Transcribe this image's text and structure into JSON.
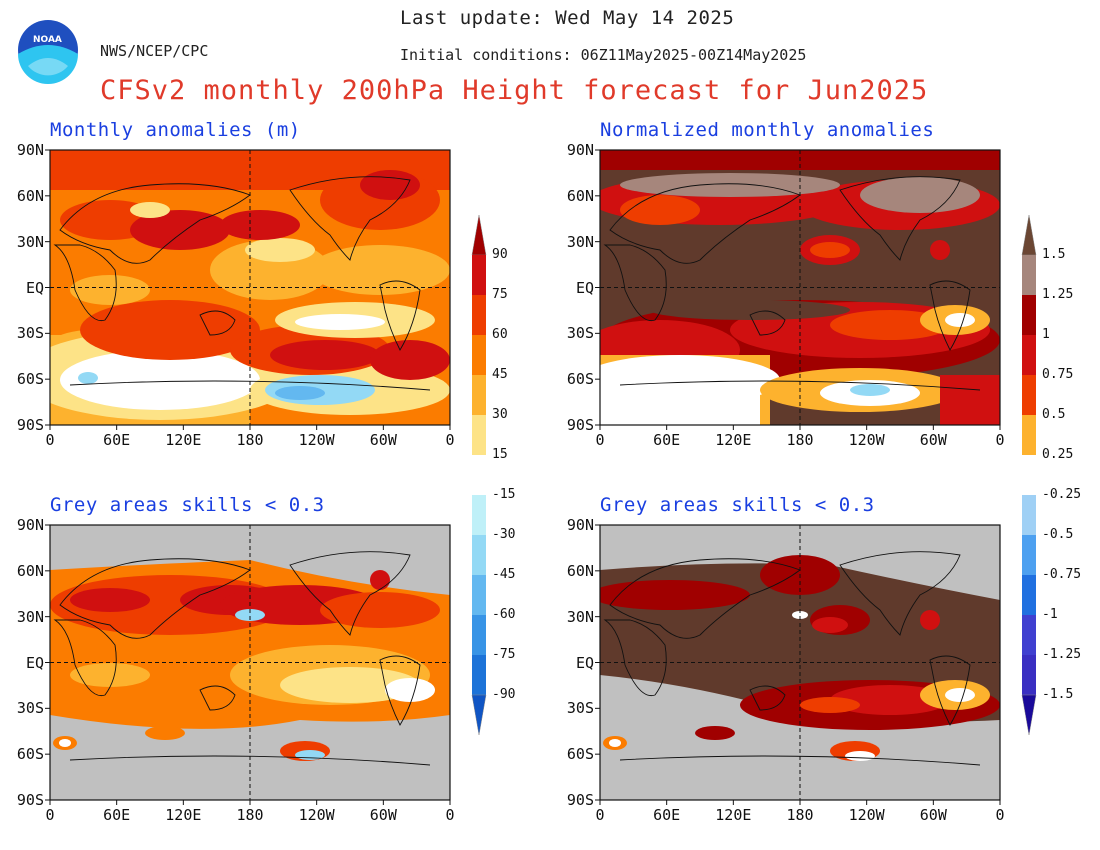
{
  "header": {
    "org": "NWS/NCEP/CPC",
    "last_update": "Last update: Wed May 14 2025",
    "initial_conditions": "Initial conditions: 06Z11May2025-00Z14May2025",
    "title": "CFSv2 monthly 200hPa Height forecast for Jun2025"
  },
  "logo": {
    "text": "NOAA"
  },
  "panels": {
    "top_left": {
      "title": "Monthly anomalies (m)"
    },
    "top_right": {
      "title": "Normalized monthly anomalies"
    },
    "bottom_left": {
      "title": "Grey areas skills < 0.3"
    },
    "bottom_right": {
      "title": "Grey areas skills < 0.3"
    }
  },
  "axes": {
    "lat_labels": [
      "90N",
      "60N",
      "30N",
      "EQ",
      "30S",
      "60S",
      "90S"
    ],
    "lon_labels": [
      "0",
      "60E",
      "120E",
      "180",
      "120W",
      "60W",
      "0"
    ]
  },
  "colorbar_left": {
    "labels": [
      "90",
      "75",
      "60",
      "45",
      "30",
      "15",
      "-15",
      "-30",
      "-45",
      "-60",
      "-75",
      "-90"
    ],
    "colors": [
      "#a00000",
      "#d01010",
      "#ee3d00",
      "#fb7c00",
      "#fdb22e",
      "#fde387",
      "#ffffff",
      "#bff0f8",
      "#93d9f5",
      "#63b8f0",
      "#3894e6",
      "#1d73d8",
      "#1055c4"
    ]
  },
  "colorbar_right": {
    "labels": [
      "1.5",
      "1.25",
      "1",
      "0.75",
      "0.5",
      "0.25",
      "-0.25",
      "-0.5",
      "-0.75",
      "-1",
      "-1.25",
      "-1.5"
    ],
    "colors": [
      "#6b4633",
      "#a6867c",
      "#a00000",
      "#d01010",
      "#ee3d00",
      "#fdb22e",
      "#ffffff",
      "#9fd0f5",
      "#4da0f0",
      "#2070e0",
      "#4040d0",
      "#3a2fc2",
      "#1a0a9a"
    ]
  },
  "map_colors": {
    "grey_mask": "#c0c0c0",
    "brown": "#603a2c",
    "taupe": "#a6867c",
    "dark_red": "#a00000",
    "red": "#d01010",
    "orange_red": "#ee3d00",
    "orange": "#fb7c00",
    "gold": "#fdb22e",
    "yellow": "#fde387",
    "light_blue": "#93d9f5",
    "blue": "#63b8f0"
  }
}
